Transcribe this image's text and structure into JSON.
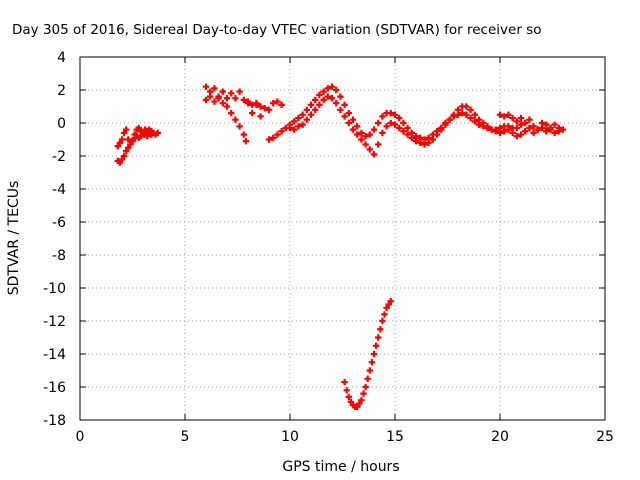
{
  "chart_data": {
    "type": "scatter",
    "title": "Day 305 of 2016, Sidereal Day-to-day VTEC variation (SDTVAR) for receiver so",
    "xlabel": "GPS time / hours",
    "ylabel": "SDTVAR / TECUs",
    "xlim": [
      0,
      25
    ],
    "ylim": [
      -18,
      4
    ],
    "x_ticks": [
      0,
      5,
      10,
      15,
      20,
      25
    ],
    "y_ticks": [
      4,
      2,
      0,
      -2,
      -4,
      -6,
      -8,
      -10,
      -12,
      -14,
      -16,
      -18
    ],
    "grid": true,
    "marker": "plus",
    "color": "#ff0000",
    "series": [
      {
        "x": [
          1.8,
          1.9,
          2.0,
          2.1,
          2.2,
          2.3,
          2.4,
          2.5,
          2.6,
          2.7,
          2.8,
          2.9,
          3.0,
          3.1,
          3.2,
          3.3,
          3.4,
          3.5,
          3.6,
          3.7
        ],
        "y": [
          -2.3,
          -2.4,
          -2.2,
          -2.0,
          -1.7,
          -1.5,
          -1.3,
          -1.1,
          -0.9,
          -0.8,
          -0.9,
          -0.8,
          -0.7,
          -0.7,
          -0.8,
          -0.6,
          -0.7,
          -0.6,
          -0.7,
          -0.6
        ]
      },
      {
        "x": [
          1.8,
          1.9,
          2.0,
          2.1,
          2.2,
          2.3,
          2.4,
          2.5,
          2.6,
          2.7,
          2.8,
          2.9,
          3.0,
          3.1,
          3.2,
          3.3,
          3.4,
          3.5
        ],
        "y": [
          -1.4,
          -1.2,
          -1.0,
          -0.6,
          -0.4,
          -1.0,
          -1.3,
          -1.1,
          -0.7,
          -0.4,
          -0.3,
          -0.5,
          -0.6,
          -0.4,
          -0.5,
          -0.4,
          -0.5,
          -0.6
        ]
      },
      {
        "x": [
          6.0,
          6.2,
          6.4,
          6.6,
          6.8,
          7.0,
          7.2,
          7.4,
          7.6,
          7.8,
          8.0,
          8.2,
          8.4,
          8.6
        ],
        "y": [
          2.2,
          1.9,
          2.1,
          1.6,
          1.9,
          1.5,
          1.8,
          1.5,
          1.9,
          1.4,
          1.3,
          1.1,
          1.2,
          1.0
        ]
      },
      {
        "x": [
          6.0,
          6.2,
          6.4,
          6.6,
          6.8,
          7.0,
          7.2,
          7.4,
          7.6,
          7.8,
          7.9
        ],
        "y": [
          1.4,
          1.6,
          1.3,
          1.5,
          1.2,
          1.0,
          0.6,
          0.2,
          -0.2,
          -0.7,
          -1.1
        ]
      },
      {
        "x": [
          8.0,
          8.2,
          8.4,
          8.6,
          8.8,
          9.0,
          9.2,
          9.4,
          9.6
        ],
        "y": [
          1.2,
          0.6,
          1.1,
          0.4,
          0.9,
          0.8,
          1.2,
          1.3,
          1.1
        ]
      },
      {
        "x": [
          9.0,
          9.2,
          9.4,
          9.6,
          9.8,
          10.0,
          10.2,
          10.4,
          10.6,
          10.8,
          11.0,
          11.2,
          11.4,
          11.6,
          11.8,
          12.0,
          12.2,
          12.4,
          12.6,
          12.8,
          13.0,
          13.2,
          13.4,
          13.6,
          13.8,
          14.0,
          14.2,
          14.4,
          14.6,
          14.8,
          15.0,
          15.2,
          15.4,
          15.6,
          15.8,
          16.0,
          16.2,
          16.4,
          16.6,
          16.8,
          17.0,
          17.2,
          17.4,
          17.6,
          17.8,
          18.0,
          18.2,
          18.4,
          18.6,
          18.8,
          19.0,
          19.2,
          19.4,
          19.6,
          19.8,
          20.0,
          20.2,
          20.4,
          20.6
        ],
        "y": [
          -1.0,
          -0.9,
          -0.7,
          -0.5,
          -0.3,
          -0.1,
          0.1,
          0.3,
          0.5,
          0.8,
          1.1,
          1.4,
          1.7,
          1.9,
          2.1,
          2.2,
          2.0,
          1.6,
          1.1,
          0.6,
          0.2,
          -0.2,
          -0.6,
          -0.8,
          -0.7,
          -0.4,
          0.0,
          0.4,
          0.6,
          0.6,
          0.5,
          0.3,
          0.0,
          -0.3,
          -0.6,
          -0.8,
          -0.9,
          -1.0,
          -0.9,
          -0.7,
          -0.5,
          -0.3,
          0.0,
          0.2,
          0.4,
          0.5,
          0.6,
          0.5,
          0.3,
          0.1,
          -0.1,
          -0.2,
          -0.3,
          -0.4,
          -0.4,
          -0.3,
          -0.2,
          -0.2,
          -0.3
        ]
      },
      {
        "x": [
          10.0,
          10.2,
          10.4,
          10.6,
          10.8,
          11.0,
          11.2,
          11.4,
          11.6,
          11.8,
          12.0,
          12.2,
          12.4,
          12.6,
          12.8,
          13.0,
          13.2,
          13.4,
          13.6,
          13.8,
          14.0,
          14.2,
          14.4,
          14.6,
          14.8,
          15.0,
          15.2,
          15.4,
          15.6,
          15.8,
          16.0,
          16.2,
          16.4,
          16.6,
          16.8,
          17.0,
          17.2,
          17.4,
          17.6,
          17.8,
          18.0,
          18.2,
          18.4,
          18.6,
          18.8,
          19.0,
          19.2,
          19.4,
          19.6,
          19.8,
          20.0,
          20.2,
          20.4,
          20.6,
          20.8,
          21.0
        ],
        "y": [
          -0.3,
          -0.4,
          -0.2,
          -0.1,
          0.2,
          0.5,
          0.8,
          1.1,
          1.4,
          1.6,
          1.5,
          1.2,
          0.8,
          0.4,
          0.0,
          -0.4,
          -0.7,
          -1.0,
          -1.3,
          -1.6,
          -1.9,
          -1.3,
          -0.6,
          -0.2,
          0.0,
          -0.1,
          -0.3,
          -0.5,
          -0.7,
          -0.9,
          -1.1,
          -1.2,
          -1.3,
          -1.2,
          -1.0,
          -0.7,
          -0.4,
          -0.1,
          0.2,
          0.5,
          0.8,
          1.0,
          1.0,
          0.8,
          0.5,
          0.2,
          0.0,
          -0.2,
          -0.4,
          -0.5,
          -0.6,
          -0.5,
          -0.4,
          -0.6,
          -0.8,
          -0.7
        ]
      },
      {
        "x": [
          20.0,
          20.2,
          20.4,
          20.6,
          20.8,
          21.0,
          21.2,
          21.4,
          21.6,
          21.8,
          22.0,
          22.2,
          22.4,
          22.6,
          22.8
        ],
        "y": [
          0.5,
          0.4,
          0.5,
          0.3,
          0.1,
          0.3,
          0.0,
          0.2,
          -0.2,
          -0.4,
          0.0,
          -0.1,
          -0.3,
          -0.1,
          -0.3
        ]
      },
      {
        "x": [
          20.8,
          21.0,
          21.2,
          21.4,
          21.6,
          21.8,
          22.0,
          22.2,
          22.4,
          22.6,
          22.8,
          23.0
        ],
        "y": [
          -0.3,
          -0.1,
          -0.5,
          -0.3,
          -0.6,
          -0.4,
          -0.3,
          -0.5,
          -0.4,
          -0.6,
          -0.5,
          -0.4
        ]
      },
      {
        "x": [
          12.6,
          12.7,
          12.8,
          12.9,
          13.0,
          13.1,
          13.2,
          13.3,
          13.4,
          13.5,
          13.6,
          13.7,
          13.8,
          13.9,
          14.0,
          14.1,
          14.2,
          14.3,
          14.4,
          14.5,
          14.6,
          14.7,
          14.8
        ],
        "y": [
          -15.7,
          -16.2,
          -16.6,
          -16.9,
          -17.1,
          -17.2,
          -17.2,
          -17.0,
          -16.8,
          -16.4,
          -16.0,
          -15.5,
          -15.0,
          -14.5,
          -14.0,
          -13.5,
          -13.0,
          -12.5,
          -12.0,
          -11.6,
          -11.2,
          -11.0,
          -10.8
        ]
      }
    ]
  }
}
